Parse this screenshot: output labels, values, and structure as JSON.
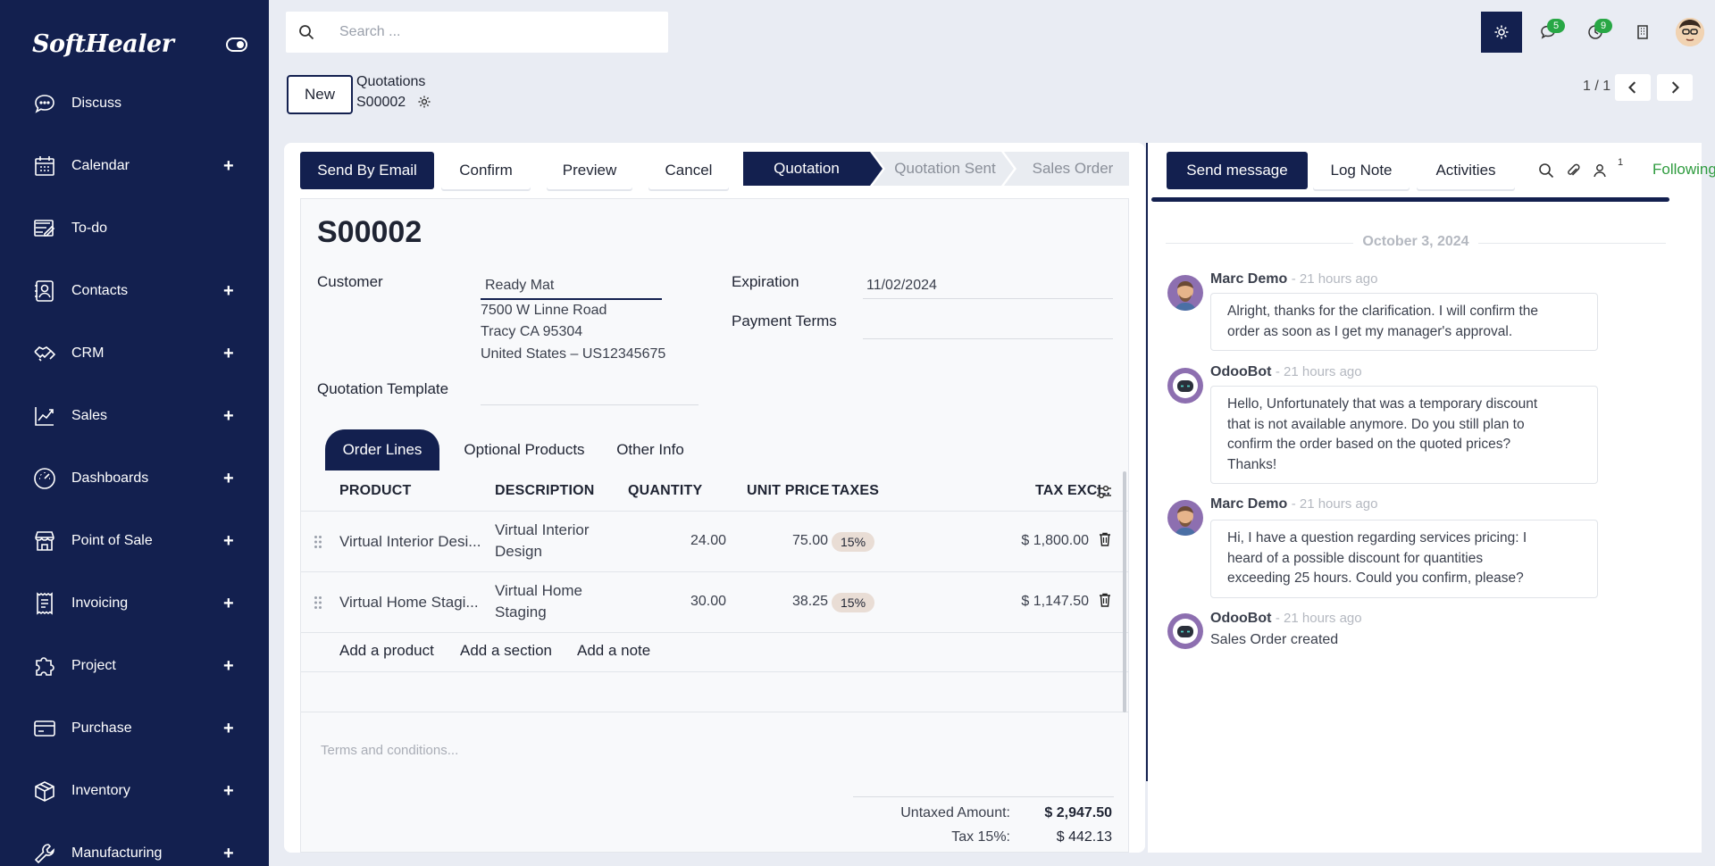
{
  "brand": "SoftHealer",
  "sidebar": {
    "items": [
      {
        "label": "Discuss",
        "icon": "chat-icon",
        "plus": ""
      },
      {
        "label": "Calendar",
        "icon": "calendar-icon",
        "plus": "+"
      },
      {
        "label": "To-do",
        "icon": "todo-icon",
        "plus": ""
      },
      {
        "label": "Contacts",
        "icon": "contacts-icon",
        "plus": "+"
      },
      {
        "label": "CRM",
        "icon": "handshake-icon",
        "plus": "+"
      },
      {
        "label": "Sales",
        "icon": "chart-line-icon",
        "plus": "+"
      },
      {
        "label": "Dashboards",
        "icon": "gauge-icon",
        "plus": "+"
      },
      {
        "label": "Point of Sale",
        "icon": "store-icon",
        "plus": "+"
      },
      {
        "label": "Invoicing",
        "icon": "receipt-icon",
        "plus": "+"
      },
      {
        "label": "Project",
        "icon": "puzzle-icon",
        "plus": "+"
      },
      {
        "label": "Purchase",
        "icon": "credit-card-icon",
        "plus": "+"
      },
      {
        "label": "Inventory",
        "icon": "box-icon",
        "plus": "+"
      },
      {
        "label": "Manufacturing",
        "icon": "wrench-icon",
        "plus": "+"
      }
    ]
  },
  "topbar": {
    "search_placeholder": "Search ...",
    "messages_badge": "5",
    "activities_badge": "9"
  },
  "breadcrumb": {
    "new_label": "New",
    "parent": "Quotations",
    "current": "S00002",
    "pager": "1 / 1"
  },
  "actions": {
    "send_email": "Send By Email",
    "confirm": "Confirm",
    "preview": "Preview",
    "cancel": "Cancel"
  },
  "status": {
    "steps": [
      "Quotation",
      "Quotation Sent",
      "Sales Order"
    ],
    "active": "Quotation"
  },
  "form": {
    "name": "S00002",
    "customer_label": "Customer",
    "customer_value": "Ready Mat",
    "address_line1": "7500 W Linne Road",
    "address_line2": "Tracy CA 95304",
    "address_line3": "United States – US12345675",
    "expiration_label": "Expiration",
    "expiration_value": "11/02/2024",
    "payment_terms_label": "Payment Terms",
    "template_label": "Quotation Template"
  },
  "tabs": [
    "Order Lines",
    "Optional Products",
    "Other Info"
  ],
  "table": {
    "headers": [
      "PRODUCT",
      "DESCRIPTION",
      "QUANTITY",
      "UNIT PRICE",
      "TAXES",
      "TAX EXCL."
    ],
    "rows": [
      {
        "product": "Virtual Interior Desi...",
        "desc1": "Virtual Interior",
        "desc2": "Design",
        "qty": "24.00",
        "price": "75.00",
        "tax": "15%",
        "total": "$ 1,800.00"
      },
      {
        "product": "Virtual Home Stagi...",
        "desc1": "Virtual Home",
        "desc2": "Staging",
        "qty": "30.00",
        "price": "38.25",
        "tax": "15%",
        "total": "$ 1,147.50"
      }
    ],
    "add_product": "Add a product",
    "add_section": "Add a section",
    "add_note": "Add a note"
  },
  "terms_placeholder": "Terms and conditions...",
  "totals": {
    "untaxed_label": "Untaxed Amount:",
    "untaxed_value": "$ 2,947.50",
    "tax_label": "Tax 15%:",
    "tax_value": "$ 442.13"
  },
  "chatter": {
    "send_message": "Send message",
    "log_note": "Log Note",
    "activities": "Activities",
    "followers_count": "1",
    "follow_label": "Following",
    "date": "October 3, 2024",
    "messages": [
      {
        "author": "Marc Demo",
        "time": "- 21 hours ago",
        "lines": [
          "Alright, thanks for the clarification. I will confirm the",
          "order as soon as I get my manager's approval."
        ]
      },
      {
        "author": "OdooBot",
        "time": "- 21 hours ago",
        "lines": [
          "Hello, Unfortunately that was a temporary discount",
          "that is not available anymore. Do you still plan to",
          "confirm the order based on the quoted prices?",
          "Thanks!"
        ]
      },
      {
        "author": "Marc Demo",
        "time": "- 21 hours ago",
        "lines": [
          "Hi, I have a question regarding services pricing: I",
          "heard of a possible discount for quantities",
          "exceeding 25 hours. Could you confirm, please?"
        ]
      },
      {
        "author": "OdooBot",
        "time": "- 21 hours ago",
        "lines": [
          "Sales Order created"
        ]
      }
    ]
  },
  "colors": {
    "primary": "#13204f",
    "follow": "#2e9b3e",
    "badge": "#28a745"
  }
}
